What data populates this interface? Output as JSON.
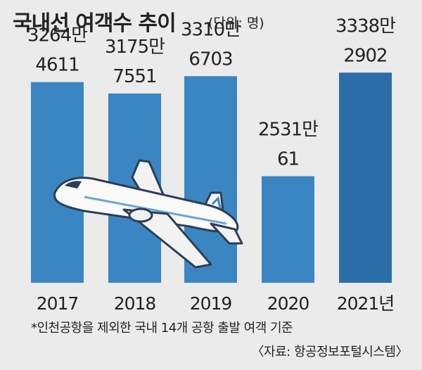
{
  "header": {
    "title": "국내선 여객수 추이",
    "unit": "(단위: 명)"
  },
  "chart_data": {
    "type": "bar",
    "categories": [
      "2017",
      "2018",
      "2019",
      "2020",
      "2021년"
    ],
    "values": [
      32644611,
      31757551,
      33106703,
      25310061,
      33382902
    ],
    "value_labels": [
      [
        "3264만",
        "4611"
      ],
      [
        "3175만",
        "7551"
      ],
      [
        "3310만",
        "6703"
      ],
      [
        "2531만",
        "61"
      ],
      [
        "3338만",
        "2902"
      ]
    ],
    "title": "국내선 여객수 추이",
    "ylabel": "",
    "xlabel": "",
    "ylim": [
      17000000,
      34000000
    ],
    "grid": false,
    "colors": {
      "bar": "#3b86c2",
      "bar_highlight": "#2b6ea9",
      "background": "#ebebeb"
    }
  },
  "footnote": "*인천공항을 제외한 국내 14개 공항 출발 여객 기준",
  "source": "〈자료: 항공정보포털시스템〉",
  "illustration": {
    "icon": "airplane-icon"
  }
}
